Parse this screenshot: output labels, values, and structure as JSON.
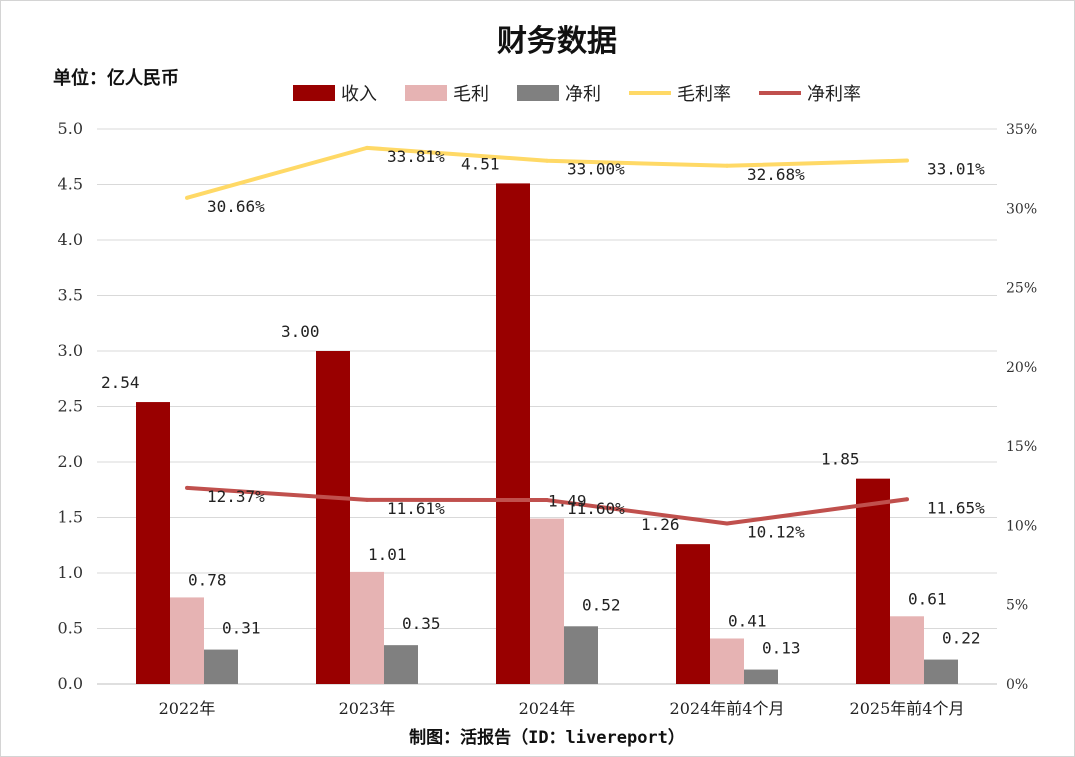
{
  "chart_data": {
    "type": "bar",
    "title": "财务数据",
    "unit_label": "单位：亿人民币",
    "credit": "制图：活报告（ID：livereport）",
    "categories": [
      "2022年",
      "2023年",
      "2024年",
      "2024年前4个月",
      "2025年前4个月"
    ],
    "series": [
      {
        "name": "收入",
        "type": "bar",
        "axis": "left",
        "color": "#990000",
        "values": [
          2.54,
          3.0,
          4.51,
          1.26,
          1.85
        ],
        "labels": [
          "2.54",
          "3.00",
          "4.51",
          "1.26",
          "1.85"
        ]
      },
      {
        "name": "毛利",
        "type": "bar",
        "axis": "left",
        "color": "#e6b3b3",
        "values": [
          0.78,
          1.01,
          1.49,
          0.41,
          0.61
        ],
        "labels": [
          "0.78",
          "1.01",
          "1.49",
          "0.41",
          "0.61"
        ]
      },
      {
        "name": "净利",
        "type": "bar",
        "axis": "left",
        "color": "#808080",
        "values": [
          0.31,
          0.35,
          0.52,
          0.13,
          0.22
        ],
        "labels": [
          "0.31",
          "0.35",
          "0.52",
          "0.13",
          "0.22"
        ]
      },
      {
        "name": "毛利率",
        "type": "line",
        "axis": "right",
        "color": "#ffd966",
        "values": [
          30.66,
          33.81,
          33.0,
          32.68,
          33.01
        ],
        "labels": [
          "30.66%",
          "33.81%",
          "33.00%",
          "32.68%",
          "33.01%"
        ]
      },
      {
        "name": "净利率",
        "type": "line",
        "axis": "right",
        "color": "#c0504d",
        "values": [
          12.37,
          11.61,
          11.6,
          10.12,
          11.65
        ],
        "labels": [
          "12.37%",
          "11.61%",
          "11.60%",
          "10.12%",
          "11.65%"
        ]
      }
    ],
    "y_left": {
      "min": 0,
      "max": 5.0,
      "ticks": [
        "0.0",
        "0.5",
        "1.0",
        "1.5",
        "2.0",
        "2.5",
        "3.0",
        "3.5",
        "4.0",
        "4.5",
        "5.0"
      ]
    },
    "y_right": {
      "min": 0,
      "max": 35,
      "ticks": [
        "0%",
        "5%",
        "10%",
        "15%",
        "20%",
        "25%",
        "30%",
        "35%"
      ]
    },
    "grid": true,
    "legend": "top-center"
  }
}
